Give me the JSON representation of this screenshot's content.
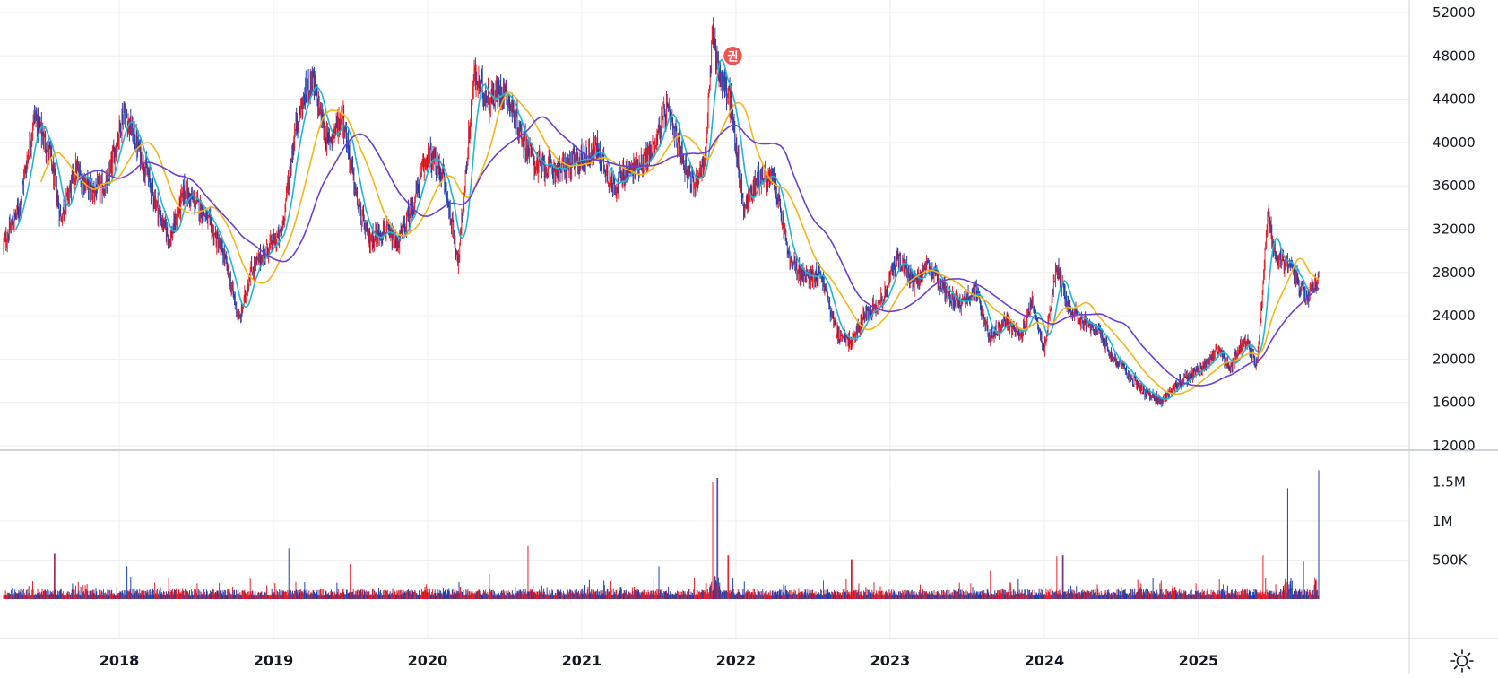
{
  "chart_data": {
    "type": "candlestick",
    "grid": true,
    "colors": {
      "up": "#e8202a",
      "down": "#1e3fae",
      "ma_short": "#1fb6d6",
      "ma_mid": "#f5b518",
      "ma_long": "#6a3fd0",
      "grid": "#eeeeee",
      "separator": "#d0d3da",
      "marker": "#ef5350"
    },
    "price_axis": {
      "ticks": [
        "12000",
        "16000",
        "20000",
        "24000",
        "28000",
        "32000",
        "36000",
        "40000",
        "44000",
        "48000",
        "52000"
      ],
      "range": [
        12000,
        52000
      ]
    },
    "volume_axis": {
      "ticks": [
        {
          "label": "500K",
          "value": 500000
        },
        {
          "label": "1M",
          "value": 1000000
        },
        {
          "label": "1.5M",
          "value": 1500000
        }
      ],
      "range": [
        0,
        1700000
      ]
    },
    "time_axis": {
      "start": 2017.25,
      "end": 2025.78,
      "ticks": [
        {
          "label": "2018",
          "value": 2018
        },
        {
          "label": "2019",
          "value": 2019
        },
        {
          "label": "2020",
          "value": 2020
        },
        {
          "label": "2021",
          "value": 2021
        },
        {
          "label": "2022",
          "value": 2022
        },
        {
          "label": "2023",
          "value": 2023
        },
        {
          "label": "2024",
          "value": 2024
        },
        {
          "label": "2025",
          "value": 2025
        }
      ]
    },
    "price_path": [
      [
        2017.25,
        30500
      ],
      [
        2017.35,
        34000
      ],
      [
        2017.45,
        42500
      ],
      [
        2017.55,
        39000
      ],
      [
        2017.62,
        33000
      ],
      [
        2017.72,
        37500
      ],
      [
        2017.82,
        35500
      ],
      [
        2017.92,
        36000
      ],
      [
        2018.03,
        43000
      ],
      [
        2018.15,
        38500
      ],
      [
        2018.27,
        33000
      ],
      [
        2018.33,
        31000
      ],
      [
        2018.42,
        35500
      ],
      [
        2018.55,
        33500
      ],
      [
        2018.68,
        29500
      ],
      [
        2018.78,
        23500
      ],
      [
        2018.85,
        28000
      ],
      [
        2018.95,
        30000
      ],
      [
        2019.05,
        31500
      ],
      [
        2019.15,
        42000
      ],
      [
        2019.25,
        46000
      ],
      [
        2019.35,
        40000
      ],
      [
        2019.45,
        42500
      ],
      [
        2019.55,
        34000
      ],
      [
        2019.62,
        31000
      ],
      [
        2019.72,
        32000
      ],
      [
        2019.8,
        30500
      ],
      [
        2019.9,
        34000
      ],
      [
        2020.0,
        39000
      ],
      [
        2020.1,
        37000
      ],
      [
        2020.2,
        29000
      ],
      [
        2020.3,
        46000
      ],
      [
        2020.4,
        44000
      ],
      [
        2020.5,
        45000
      ],
      [
        2020.6,
        41000
      ],
      [
        2020.7,
        38000
      ],
      [
        2020.85,
        37500
      ],
      [
        2021.0,
        38500
      ],
      [
        2021.1,
        39500
      ],
      [
        2021.2,
        36000
      ],
      [
        2021.35,
        37800
      ],
      [
        2021.45,
        39000
      ],
      [
        2021.55,
        43000
      ],
      [
        2021.62,
        40000
      ],
      [
        2021.72,
        36000
      ],
      [
        2021.8,
        38500
      ],
      [
        2021.85,
        50000
      ],
      [
        2021.9,
        46000
      ],
      [
        2021.96,
        44000
      ],
      [
        2022.05,
        34000
      ],
      [
        2022.15,
        37000
      ],
      [
        2022.25,
        36500
      ],
      [
        2022.35,
        29000
      ],
      [
        2022.45,
        27500
      ],
      [
        2022.55,
        28000
      ],
      [
        2022.65,
        22500
      ],
      [
        2022.75,
        21500
      ],
      [
        2022.85,
        24500
      ],
      [
        2022.95,
        25500
      ],
      [
        2023.05,
        29500
      ],
      [
        2023.15,
        27000
      ],
      [
        2023.25,
        28500
      ],
      [
        2023.35,
        26500
      ],
      [
        2023.45,
        25000
      ],
      [
        2023.55,
        26500
      ],
      [
        2023.65,
        22000
      ],
      [
        2023.75,
        23500
      ],
      [
        2023.85,
        22000
      ],
      [
        2023.92,
        25500
      ],
      [
        2024.0,
        21000
      ],
      [
        2024.08,
        28500
      ],
      [
        2024.15,
        25000
      ],
      [
        2024.25,
        23500
      ],
      [
        2024.35,
        22500
      ],
      [
        2024.45,
        20000
      ],
      [
        2024.55,
        18500
      ],
      [
        2024.65,
        17000
      ],
      [
        2024.75,
        16000
      ],
      [
        2024.85,
        17500
      ],
      [
        2024.95,
        18500
      ],
      [
        2025.05,
        19500
      ],
      [
        2025.12,
        21000
      ],
      [
        2025.2,
        19000
      ],
      [
        2025.3,
        22000
      ],
      [
        2025.38,
        19500
      ],
      [
        2025.45,
        33500
      ],
      [
        2025.5,
        29500
      ],
      [
        2025.6,
        28500
      ],
      [
        2025.7,
        25500
      ],
      [
        2025.78,
        27500
      ]
    ],
    "volume_spikes": [
      [
        2017.58,
        580000
      ],
      [
        2018.05,
        420000
      ],
      [
        2019.1,
        650000
      ],
      [
        2019.5,
        450000
      ],
      [
        2020.4,
        320000
      ],
      [
        2020.65,
        680000
      ],
      [
        2021.5,
        420000
      ],
      [
        2021.85,
        1500000
      ],
      [
        2021.88,
        1550000
      ],
      [
        2021.95,
        560000
      ],
      [
        2022.75,
        510000
      ],
      [
        2023.65,
        360000
      ],
      [
        2024.08,
        550000
      ],
      [
        2024.12,
        560000
      ],
      [
        2025.42,
        560000
      ],
      [
        2025.58,
        1420000
      ],
      [
        2025.68,
        480000
      ],
      [
        2025.78,
        1650000
      ]
    ],
    "markers": [
      {
        "label": "권",
        "x": 2021.98,
        "y": 48000
      }
    ]
  },
  "ui": {
    "settings_icon": "sun-gear-icon"
  }
}
